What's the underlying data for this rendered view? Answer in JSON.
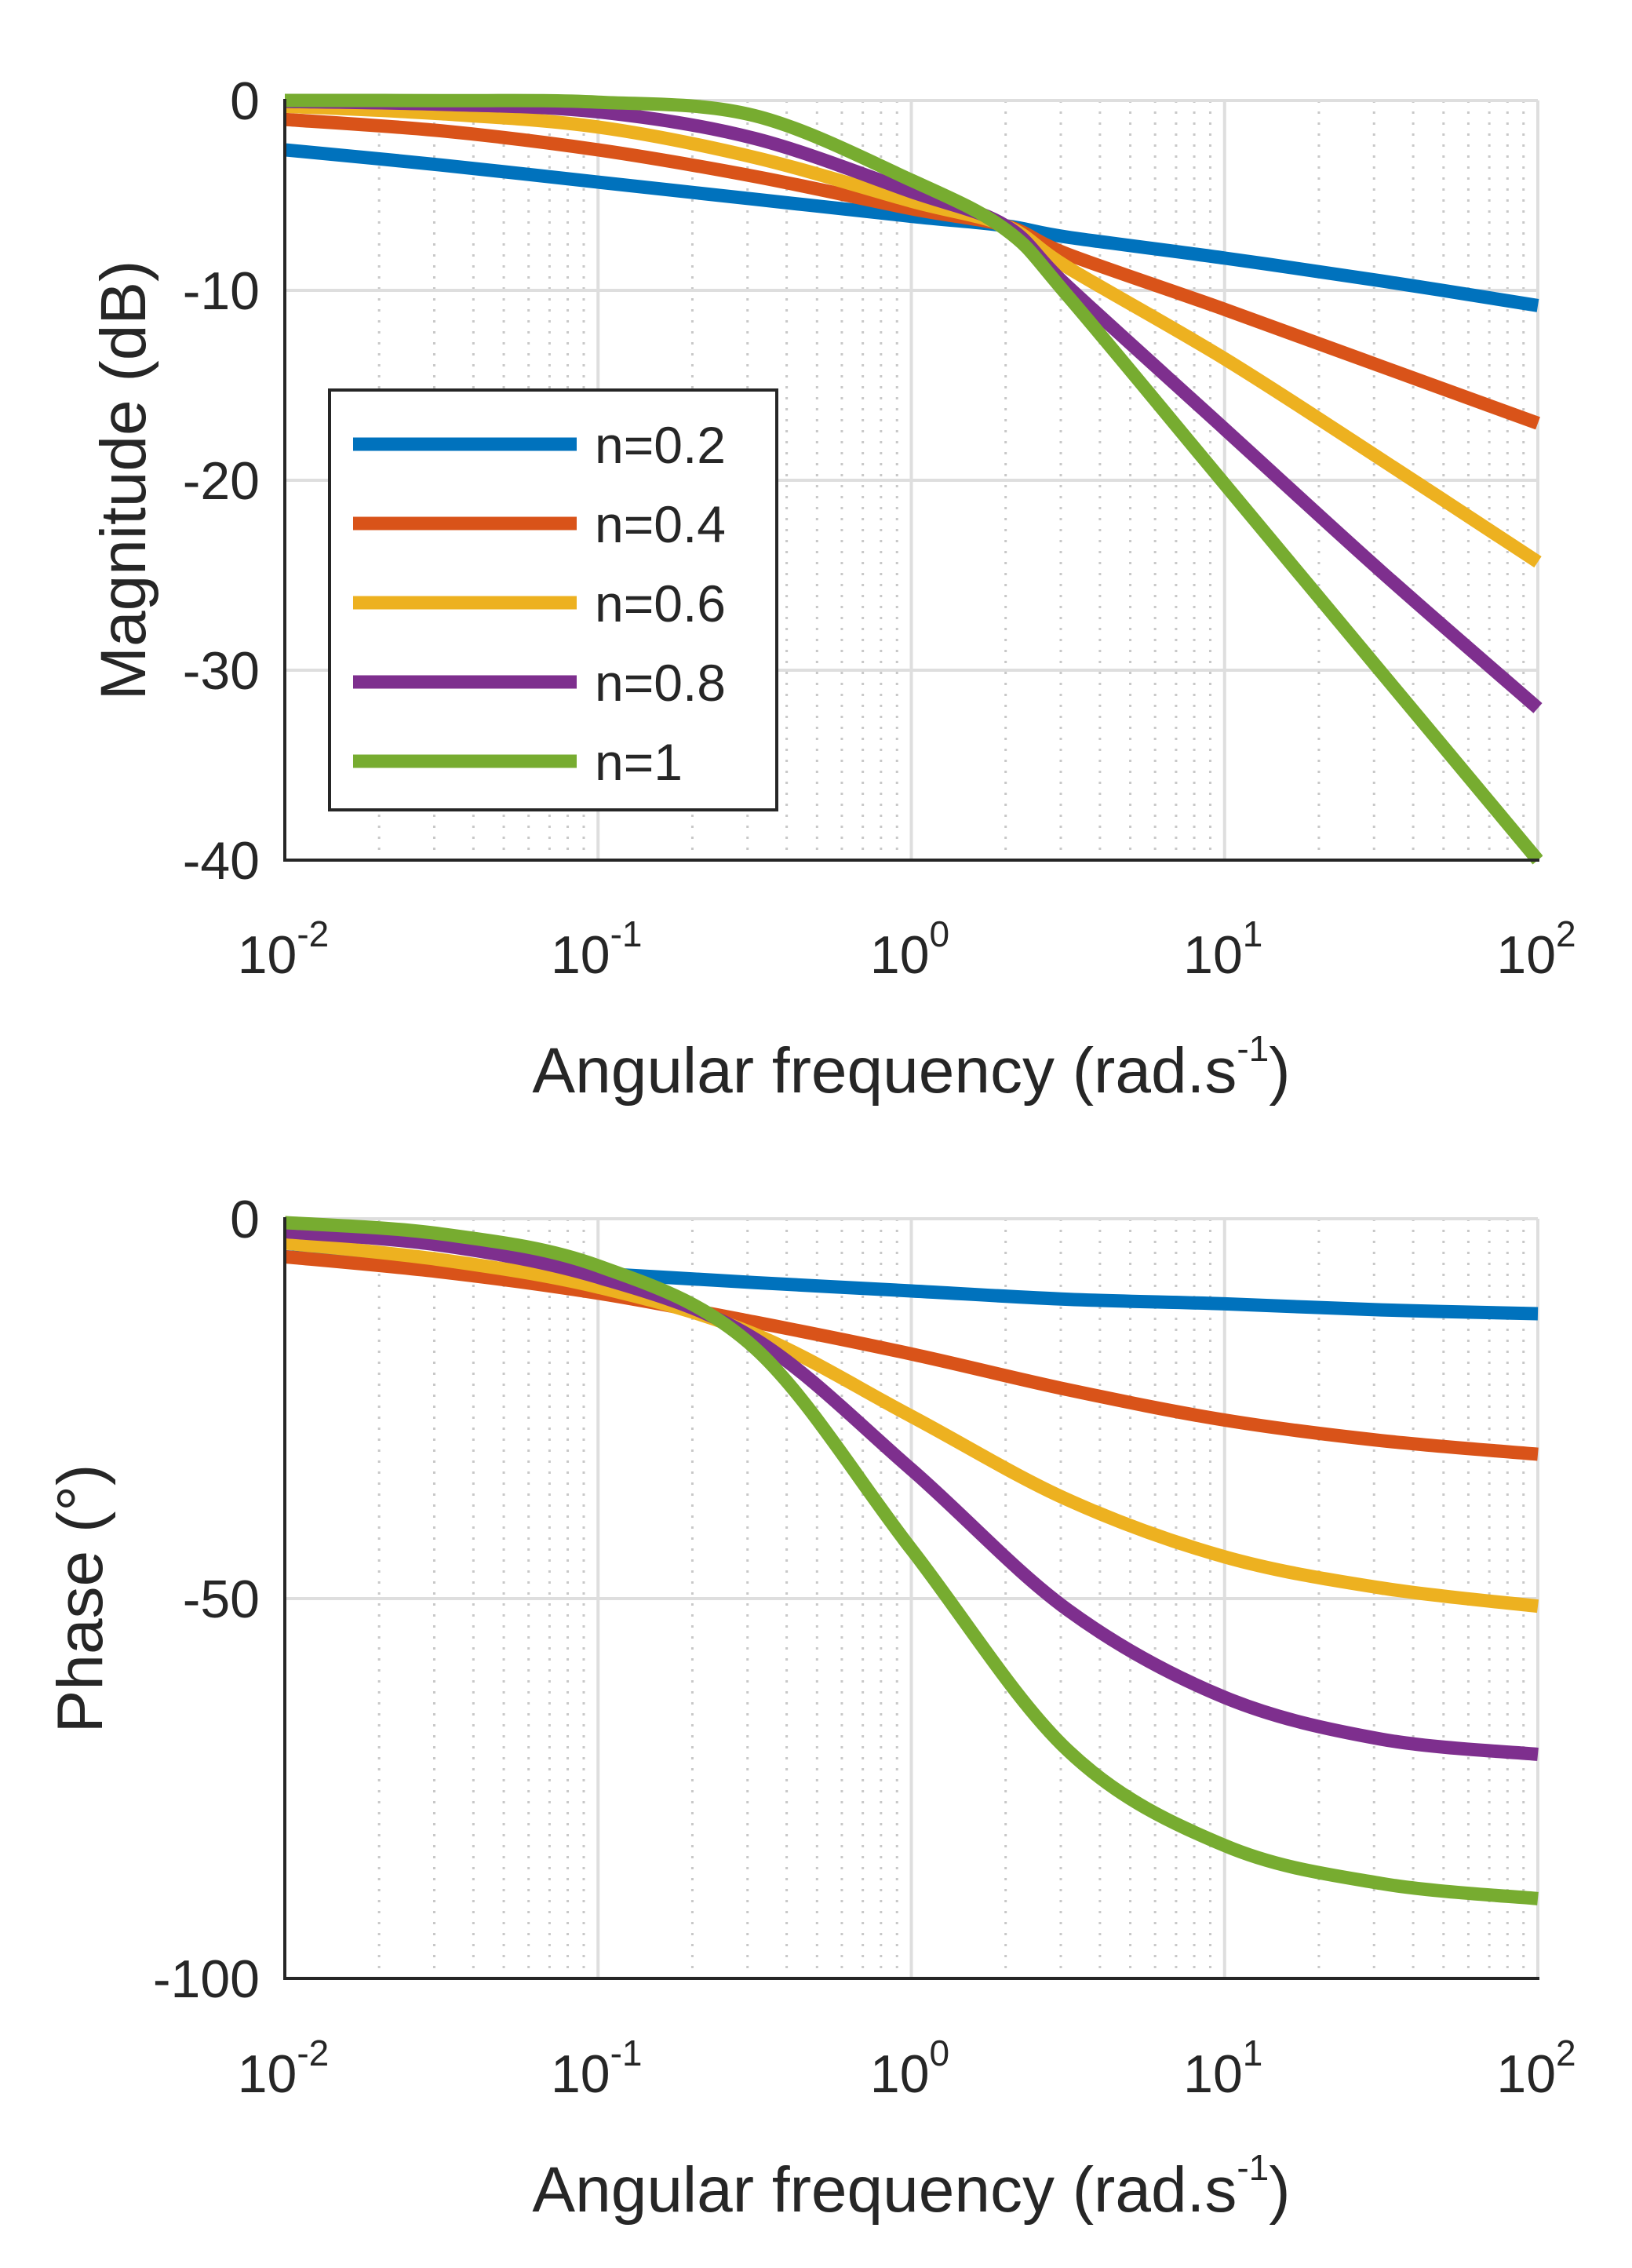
{
  "chart_data": [
    {
      "type": "line",
      "xscale": "log",
      "xlim": [
        0.01,
        100
      ],
      "ylim": [
        -40,
        0
      ],
      "yticks": [
        0,
        -10,
        -20,
        -30,
        -40
      ],
      "ytick_labels": [
        "0",
        "-10",
        "-20",
        "-30",
        "-40"
      ],
      "xticks": [
        0.01,
        0.1,
        1,
        10,
        100
      ],
      "xtick_labels": [
        {
          "base": "10",
          "exp": "-2"
        },
        {
          "base": "10",
          "exp": "-1"
        },
        {
          "base": "10",
          "exp": "0"
        },
        {
          "base": "10",
          "exp": "1"
        },
        {
          "base": "10",
          "exp": "2"
        }
      ],
      "xlabel": {
        "text": "Angular frequency (rad.s",
        "exp": "-1",
        "close": ")"
      },
      "ylabel": "Magnitude (dB)",
      "grid": true,
      "legend": {
        "position": "left-middle"
      },
      "x": [
        0.01,
        0.0316,
        0.1,
        0.316,
        1,
        2,
        3.16,
        10,
        31.6,
        100
      ],
      "series": [
        {
          "name": "n=0.2",
          "color": "#0072BD",
          "values": [
            -2.6,
            -3.4,
            -4.3,
            -5.2,
            -6.1,
            -6.6,
            -7.2,
            -8.3,
            -9.5,
            -10.8
          ]
        },
        {
          "name": "n=0.4",
          "color": "#D95319",
          "values": [
            -1.0,
            -1.6,
            -2.6,
            -4.0,
            -5.7,
            -6.6,
            -8.1,
            -11.0,
            -14.0,
            -17.0
          ]
        },
        {
          "name": "n=0.6",
          "color": "#EDB120",
          "values": [
            -0.3,
            -0.7,
            -1.4,
            -3.0,
            -5.3,
            -6.6,
            -8.8,
            -13.6,
            -18.9,
            -24.3
          ]
        },
        {
          "name": "n=0.8",
          "color": "#7E2F8E",
          "values": [
            -0.05,
            -0.2,
            -0.6,
            -2.0,
            -4.8,
            -6.6,
            -9.8,
            -17.3,
            -24.8,
            -32.0
          ]
        },
        {
          "name": "n=1",
          "color": "#77AC30",
          "values": [
            0.0,
            -0.01,
            -0.09,
            -0.8,
            -4.2,
            -6.8,
            -10.3,
            -20.2,
            -30.1,
            -40.0
          ]
        }
      ]
    },
    {
      "type": "line",
      "xscale": "log",
      "xlim": [
        0.01,
        100
      ],
      "ylim": [
        -100,
        0
      ],
      "yticks": [
        0,
        -50,
        -100
      ],
      "ytick_labels": [
        "0",
        "-50",
        "-100"
      ],
      "xticks": [
        0.01,
        0.1,
        1,
        10,
        100
      ],
      "xtick_labels": [
        {
          "base": "10",
          "exp": "-2"
        },
        {
          "base": "10",
          "exp": "-1"
        },
        {
          "base": "10",
          "exp": "0"
        },
        {
          "base": "10",
          "exp": "1"
        },
        {
          "base": "10",
          "exp": "2"
        }
      ],
      "xlabel": {
        "text": "Angular frequency (rad.s",
        "exp": "-1",
        "close": ")"
      },
      "ylabel": "Phase (°)",
      "grid": true,
      "x": [
        0.01,
        0.0316,
        0.1,
        0.316,
        1,
        3.16,
        10,
        31.6,
        100
      ],
      "series": [
        {
          "name": "n=0.2",
          "color": "#0072BD",
          "values": [
            -5,
            -6.2,
            -7.2,
            -8.4,
            -9.5,
            -10.6,
            -11.2,
            -12.0,
            -12.5
          ]
        },
        {
          "name": "n=0.4",
          "color": "#D95319",
          "values": [
            -5,
            -7.0,
            -9.8,
            -13.6,
            -17.8,
            -22.5,
            -26.5,
            -29.2,
            -31.0
          ]
        },
        {
          "name": "n=0.6",
          "color": "#EDB120",
          "values": [
            -3.2,
            -5.4,
            -9.0,
            -15.2,
            -26.0,
            -37.0,
            -44.5,
            -48.6,
            -51.0
          ]
        },
        {
          "name": "n=0.8",
          "color": "#7E2F8E",
          "values": [
            -1.7,
            -3.5,
            -7.7,
            -15.8,
            -33.0,
            -51.5,
            -63.0,
            -68.5,
            -70.5
          ]
        },
        {
          "name": "n=1",
          "color": "#77AC30",
          "values": [
            -0.5,
            -2.0,
            -6.2,
            -17.0,
            -43.5,
            -70.0,
            -82.5,
            -87.5,
            -89.5
          ]
        }
      ]
    }
  ]
}
